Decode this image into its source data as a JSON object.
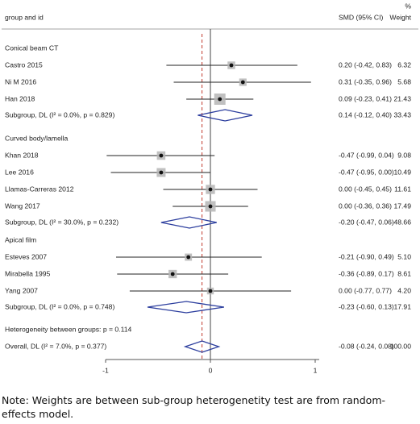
{
  "chart_data": {
    "type": "forest",
    "header": {
      "group_label": "group and id",
      "smd_label": "SMD (95% CI)",
      "weight_pct": "%",
      "weight_label": "Weight"
    },
    "x_ticks": [
      "-1",
      "0",
      "1"
    ],
    "xlim": [
      -1.0,
      1.05
    ],
    "overall_effect_line": -0.08,
    "groups": [
      {
        "name": "Conical beam CT",
        "studies": [
          {
            "label": "Castro 2015",
            "est": 0.2,
            "lo": -0.42,
            "hi": 0.83,
            "ci_text": "0.20 (-0.42, 0.83)",
            "weight": "6.32",
            "w": 6.32
          },
          {
            "label": "Ni M 2016",
            "est": 0.31,
            "lo": -0.35,
            "hi": 0.96,
            "ci_text": "0.31 (-0.35, 0.96)",
            "weight": "5.68",
            "w": 5.68
          },
          {
            "label": "Han 2018",
            "est": 0.09,
            "lo": -0.23,
            "hi": 0.41,
            "ci_text": "0.09 (-0.23, 0.41)",
            "weight": "21.43",
            "w": 21.43
          }
        ],
        "subgroup": {
          "label": "Subgroup, DL (I² = 0.0%, p = 0.829)",
          "est": 0.14,
          "lo": -0.12,
          "hi": 0.4,
          "ci_text": "0.14 (-0.12, 0.40)",
          "weight": "33.43"
        }
      },
      {
        "name": "Curved body/lamella",
        "studies": [
          {
            "label": "Khan 2018",
            "est": -0.47,
            "lo": -0.99,
            "hi": 0.04,
            "ci_text": "-0.47 (-0.99, 0.04)",
            "weight": "9.08",
            "w": 9.08
          },
          {
            "label": "Lee 2016",
            "est": -0.47,
            "lo": -0.95,
            "hi": 0.0,
            "ci_text": "-0.47 (-0.95, 0.00)",
            "weight": "10.49",
            "w": 10.49
          },
          {
            "label": "Llamas-Carreras 2012",
            "est": 0.0,
            "lo": -0.45,
            "hi": 0.45,
            "ci_text": "0.00 (-0.45, 0.45)",
            "weight": "11.61",
            "w": 11.61
          },
          {
            "label": "Wang 2017",
            "est": 0.0,
            "lo": -0.36,
            "hi": 0.36,
            "ci_text": "0.00 (-0.36, 0.36)",
            "weight": "17.49",
            "w": 17.49
          }
        ],
        "subgroup": {
          "label": "Subgroup, DL (I² = 30.0%, p = 0.232)",
          "est": -0.2,
          "lo": -0.47,
          "hi": 0.06,
          "ci_text": "-0.20 (-0.47, 0.06)",
          "weight": "48.66"
        }
      },
      {
        "name": "Apical film",
        "studies": [
          {
            "label": "Esteves 2007",
            "est": -0.21,
            "lo": -0.9,
            "hi": 0.49,
            "ci_text": "-0.21 (-0.90, 0.49)",
            "weight": "5.10",
            "w": 5.1
          },
          {
            "label": "Mirabella 1995",
            "est": -0.36,
            "lo": -0.89,
            "hi": 0.17,
            "ci_text": "-0.36 (-0.89, 0.17)",
            "weight": "8.61",
            "w": 8.61
          },
          {
            "label": "Yang 2007",
            "est": 0.0,
            "lo": -0.77,
            "hi": 0.77,
            "ci_text": "0.00 (-0.77, 0.77)",
            "weight": "4.20",
            "w": 4.2
          }
        ],
        "subgroup": {
          "label": "Subgroup, DL (I² = 0.0%, p = 0.748)",
          "est": -0.23,
          "lo": -0.6,
          "hi": 0.13,
          "ci_text": "-0.23 (-0.60, 0.13)",
          "weight": "17.91"
        }
      }
    ],
    "heterogeneity_between": "Heterogeneity between groups: p = 0.114",
    "overall": {
      "label": "Overall, DL (I² = 7.0%, p = 0.377)",
      "est": -0.08,
      "lo": -0.24,
      "hi": 0.08,
      "ci_text": "-0.08 (-0.24, 0.08)",
      "weight": "100.00"
    },
    "colors": {
      "diamond": "#2c3e9e",
      "effect_line": "#c0392b",
      "weight_box": "#b5b5b5",
      "axis": "#555555"
    }
  },
  "note": "Note: Weights are between sub-group heterogenetity test are from random-effects model."
}
